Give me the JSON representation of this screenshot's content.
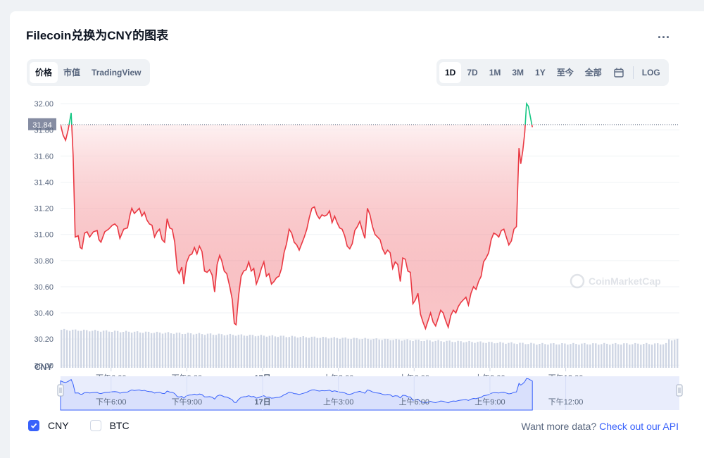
{
  "header": {
    "title": "Filecoin兑换为CNY的图表",
    "more_label": "..."
  },
  "left_tabs": [
    "价格",
    "市值",
    "TradingView"
  ],
  "right_tabs": [
    "1D",
    "7D",
    "1M",
    "3M",
    "1Y",
    "至今",
    "全部"
  ],
  "log_label": "LOG",
  "currency_label": "CNY",
  "watermark": "CoinMarketCap",
  "legend": {
    "cny": "CNY",
    "btc": "BTC"
  },
  "api": {
    "prefix": "Want more data?",
    "link": "Check out our API"
  },
  "colors": {
    "up": "#16c784",
    "down": "#ea3943",
    "accent": "#3861fb",
    "volume": "#cfd6e4"
  },
  "chart_data": {
    "type": "line",
    "current_price": "31.84",
    "ylim": [
      29.98,
      32.06
    ],
    "y_ticks": [
      "32.00",
      "31.80",
      "31.60",
      "31.40",
      "31.20",
      "31.00",
      "30.80",
      "30.60",
      "30.40",
      "30.20",
      "30.00"
    ],
    "x_range": [
      0,
      24.5
    ],
    "x_ticks": [
      {
        "x": 2.0,
        "label": "下午6:00"
      },
      {
        "x": 5.0,
        "label": "下午9:00"
      },
      {
        "x": 8.0,
        "label": "17日"
      },
      {
        "x": 11.0,
        "label": "上午3:00"
      },
      {
        "x": 14.0,
        "label": "上午6:00"
      },
      {
        "x": 17.0,
        "label": "上午9:00"
      },
      {
        "x": 20.0,
        "label": "下午12:00"
      }
    ],
    "series": [
      {
        "values": [
          [
            0,
            31.84
          ],
          [
            0.1,
            31.76
          ],
          [
            0.2,
            31.72
          ],
          [
            0.3,
            31.8
          ],
          [
            0.42,
            31.93
          ],
          [
            0.5,
            31.6
          ],
          [
            0.58,
            30.98
          ],
          [
            0.7,
            30.99
          ],
          [
            0.78,
            30.9
          ],
          [
            0.85,
            30.89
          ],
          [
            0.95,
            31.01
          ],
          [
            1.05,
            31.02
          ],
          [
            1.15,
            30.98
          ],
          [
            1.3,
            31.02
          ],
          [
            1.45,
            31.03
          ],
          [
            1.52,
            30.96
          ],
          [
            1.6,
            30.94
          ],
          [
            1.75,
            31.02
          ],
          [
            1.9,
            31.04
          ],
          [
            2.05,
            31.07
          ],
          [
            2.15,
            31.08
          ],
          [
            2.25,
            31.06
          ],
          [
            2.35,
            30.97
          ],
          [
            2.5,
            31.04
          ],
          [
            2.65,
            31.05
          ],
          [
            2.75,
            31.15
          ],
          [
            2.82,
            31.2
          ],
          [
            2.92,
            31.16
          ],
          [
            3.02,
            31.18
          ],
          [
            3.12,
            31.2
          ],
          [
            3.22,
            31.14
          ],
          [
            3.32,
            31.17
          ],
          [
            3.42,
            31.11
          ],
          [
            3.52,
            31.08
          ],
          [
            3.62,
            31.07
          ],
          [
            3.72,
            30.98
          ],
          [
            3.82,
            31.02
          ],
          [
            3.92,
            31.04
          ],
          [
            4.02,
            30.96
          ],
          [
            4.12,
            30.94
          ],
          [
            4.22,
            31.12
          ],
          [
            4.32,
            31.05
          ],
          [
            4.42,
            31.04
          ],
          [
            4.52,
            30.94
          ],
          [
            4.62,
            30.73
          ],
          [
            4.7,
            30.7
          ],
          [
            4.8,
            30.75
          ],
          [
            4.88,
            30.62
          ],
          [
            4.98,
            30.78
          ],
          [
            5.1,
            30.84
          ],
          [
            5.2,
            30.85
          ],
          [
            5.3,
            30.9
          ],
          [
            5.4,
            30.85
          ],
          [
            5.5,
            30.91
          ],
          [
            5.6,
            30.87
          ],
          [
            5.7,
            30.72
          ],
          [
            5.8,
            30.71
          ],
          [
            5.9,
            30.73
          ],
          [
            6.0,
            30.69
          ],
          [
            6.1,
            30.56
          ],
          [
            6.2,
            30.77
          ],
          [
            6.3,
            30.84
          ],
          [
            6.38,
            30.8
          ],
          [
            6.48,
            30.72
          ],
          [
            6.58,
            30.7
          ],
          [
            6.7,
            30.6
          ],
          [
            6.8,
            30.5
          ],
          [
            6.88,
            30.32
          ],
          [
            6.95,
            30.31
          ],
          [
            7.05,
            30.53
          ],
          [
            7.15,
            30.68
          ],
          [
            7.25,
            30.72
          ],
          [
            7.35,
            30.73
          ],
          [
            7.45,
            30.79
          ],
          [
            7.55,
            30.72
          ],
          [
            7.65,
            30.74
          ],
          [
            7.75,
            30.62
          ],
          [
            7.85,
            30.67
          ],
          [
            7.95,
            30.74
          ],
          [
            8.05,
            30.79
          ],
          [
            8.15,
            30.68
          ],
          [
            8.25,
            30.7
          ],
          [
            8.35,
            30.62
          ],
          [
            8.45,
            30.64
          ],
          [
            8.55,
            30.67
          ],
          [
            8.65,
            30.68
          ],
          [
            8.75,
            30.74
          ],
          [
            8.85,
            30.86
          ],
          [
            8.95,
            30.93
          ],
          [
            9.05,
            31.04
          ],
          [
            9.15,
            31.01
          ],
          [
            9.25,
            30.94
          ],
          [
            9.35,
            30.92
          ],
          [
            9.45,
            30.88
          ],
          [
            9.55,
            30.93
          ],
          [
            9.65,
            30.98
          ],
          [
            9.75,
            31.04
          ],
          [
            9.85,
            31.13
          ],
          [
            9.95,
            31.2
          ],
          [
            10.05,
            31.21
          ],
          [
            10.15,
            31.15
          ],
          [
            10.25,
            31.12
          ],
          [
            10.35,
            31.15
          ],
          [
            10.45,
            31.14
          ],
          [
            10.55,
            31.15
          ],
          [
            10.65,
            31.18
          ],
          [
            10.75,
            31.09
          ],
          [
            10.85,
            31.14
          ],
          [
            10.95,
            31.09
          ],
          [
            11.05,
            31.05
          ],
          [
            11.15,
            31.04
          ],
          [
            11.25,
            30.99
          ],
          [
            11.35,
            30.91
          ],
          [
            11.45,
            30.89
          ],
          [
            11.55,
            30.93
          ],
          [
            11.65,
            31.03
          ],
          [
            11.75,
            31.06
          ],
          [
            11.85,
            31.1
          ],
          [
            11.95,
            31.03
          ],
          [
            12.05,
            30.97
          ],
          [
            12.15,
            31.2
          ],
          [
            12.25,
            31.15
          ],
          [
            12.35,
            31.06
          ],
          [
            12.45,
            31.0
          ],
          [
            12.55,
            30.98
          ],
          [
            12.65,
            30.96
          ],
          [
            12.75,
            30.89
          ],
          [
            12.85,
            30.85
          ],
          [
            12.95,
            30.88
          ],
          [
            13.05,
            30.86
          ],
          [
            13.15,
            30.74
          ],
          [
            13.25,
            30.79
          ],
          [
            13.35,
            30.77
          ],
          [
            13.45,
            30.64
          ],
          [
            13.55,
            30.82
          ],
          [
            13.65,
            30.81
          ],
          [
            13.75,
            30.72
          ],
          [
            13.85,
            30.71
          ],
          [
            13.95,
            30.47
          ],
          [
            14.05,
            30.5
          ],
          [
            14.15,
            30.55
          ],
          [
            14.25,
            30.39
          ],
          [
            14.35,
            30.33
          ],
          [
            14.45,
            30.28
          ],
          [
            14.55,
            30.34
          ],
          [
            14.65,
            30.4
          ],
          [
            14.75,
            30.33
          ],
          [
            14.85,
            30.3
          ],
          [
            14.95,
            30.36
          ],
          [
            15.05,
            30.42
          ],
          [
            15.15,
            30.4
          ],
          [
            15.25,
            30.34
          ],
          [
            15.35,
            30.29
          ],
          [
            15.45,
            30.38
          ],
          [
            15.55,
            30.42
          ],
          [
            15.65,
            30.4
          ],
          [
            15.75,
            30.45
          ],
          [
            15.85,
            30.48
          ],
          [
            15.95,
            30.5
          ],
          [
            16.05,
            30.52
          ],
          [
            16.15,
            30.46
          ],
          [
            16.25,
            30.55
          ],
          [
            16.35,
            30.6
          ],
          [
            16.45,
            30.58
          ],
          [
            16.55,
            30.64
          ],
          [
            16.65,
            30.68
          ],
          [
            16.75,
            30.79
          ],
          [
            16.85,
            30.82
          ],
          [
            16.95,
            30.86
          ],
          [
            17.05,
            30.96
          ],
          [
            17.15,
            31.01
          ],
          [
            17.25,
            31.0
          ],
          [
            17.35,
            30.98
          ],
          [
            17.45,
            31.03
          ],
          [
            17.55,
            31.04
          ],
          [
            17.65,
            30.98
          ],
          [
            17.75,
            30.92
          ],
          [
            17.85,
            30.95
          ],
          [
            17.95,
            31.04
          ],
          [
            18.05,
            31.06
          ],
          [
            18.15,
            31.66
          ],
          [
            18.22,
            31.54
          ],
          [
            18.3,
            31.64
          ],
          [
            18.38,
            31.78
          ],
          [
            18.45,
            32.0
          ],
          [
            18.52,
            31.98
          ],
          [
            18.6,
            31.9
          ],
          [
            18.68,
            31.82
          ]
        ]
      }
    ]
  }
}
